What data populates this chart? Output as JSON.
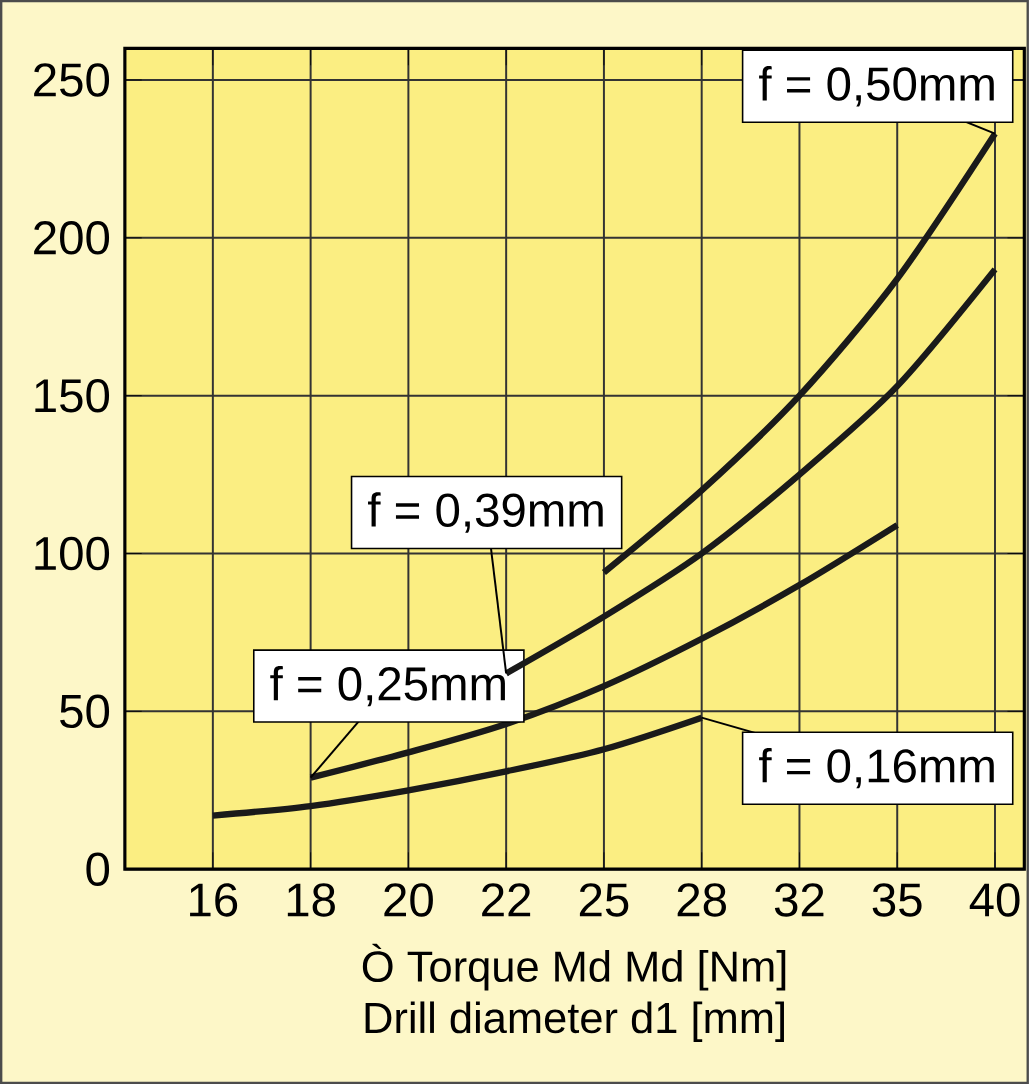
{
  "chart_data": {
    "type": "line",
    "xlabel": "Drill diameter d1 [mm]",
    "annotations": [
      "Ò Torque Md Md [Nm]"
    ],
    "categories": [
      "16",
      "18",
      "20",
      "22",
      "25",
      "28",
      "32",
      "35",
      "40"
    ],
    "series": [
      {
        "name": "f = 0,16mm",
        "color": "#1a1a1a",
        "values": [
          17,
          20,
          25,
          31,
          38,
          48,
          null,
          null,
          null
        ]
      },
      {
        "name": "f = 0,25mm",
        "color": "#1a1a1a",
        "values": [
          null,
          29,
          37,
          46,
          58,
          73,
          90,
          109,
          null
        ]
      },
      {
        "name": "f = 0,39mm",
        "color": "#1a1a1a",
        "values": [
          null,
          null,
          null,
          62,
          80,
          100,
          125,
          153,
          190
        ]
      },
      {
        "name": "f = 0,50mm",
        "color": "#1a1a1a",
        "values": [
          null,
          null,
          null,
          null,
          94,
          120,
          150,
          187,
          233
        ]
      }
    ],
    "ylim": [
      0,
      260
    ],
    "yticks": [
      0,
      50,
      100,
      150,
      200,
      250
    ],
    "grid": true,
    "marker": "none",
    "line_style": "solid"
  }
}
